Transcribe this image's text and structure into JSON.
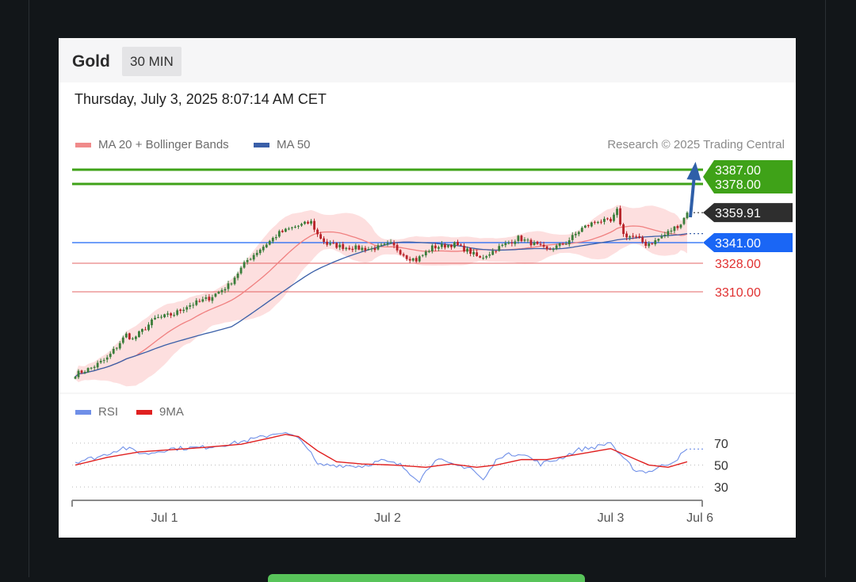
{
  "header": {
    "title": "Gold",
    "timeframe": "30 MIN",
    "datetime": "Thursday, July 3, 2025 8:07:14 AM CET",
    "credit": "Research © 2025 Trading Central"
  },
  "legend": {
    "ma20_bb": "MA 20 + Bollinger Bands",
    "ma50": "MA 50",
    "rsi": "RSI",
    "rsi_ma": "9MA"
  },
  "colors": {
    "up": "#3a7d3a",
    "down": "#b8242a",
    "bb_fill": "#fdd9d9",
    "ma20": "#f08080",
    "ma50": "#3a5fa8",
    "resistance": "#3fa218",
    "pivot": "#1a66f5",
    "support": "#e05050",
    "last": "#2e2e2e",
    "rsi": "#6f8fe8",
    "rsi_ma": "#e02020"
  },
  "chart_data": {
    "type": "candlestick",
    "instrument": "Gold",
    "interval": "30 MIN",
    "ylim": [
      3252,
      3392
    ],
    "x_ticks": [
      "Jul 1",
      "Jul 2",
      "Jul 3",
      "Jul 6"
    ],
    "x_tick_index": [
      28,
      98,
      168,
      196
    ],
    "levels": [
      {
        "value": 3387.0,
        "label": "3387.00",
        "kind": "resistance"
      },
      {
        "value": 3378.0,
        "label": "3378.00",
        "kind": "resistance"
      },
      {
        "value": 3359.91,
        "label": "3359.91",
        "kind": "last"
      },
      {
        "value": 3341.0,
        "label": "3341.00",
        "kind": "pivot"
      },
      {
        "value": 3328.0,
        "label": "3328.00",
        "kind": "support"
      },
      {
        "value": 3310.0,
        "label": "3310.00",
        "kind": "support"
      }
    ],
    "target_arrow": {
      "from": 3357,
      "to": 3389
    },
    "close_anchors": [
      [
        0,
        3258
      ],
      [
        5,
        3262
      ],
      [
        10,
        3268
      ],
      [
        16,
        3283
      ],
      [
        18,
        3280
      ],
      [
        25,
        3293
      ],
      [
        31,
        3296
      ],
      [
        35,
        3301
      ],
      [
        42,
        3306
      ],
      [
        48,
        3314
      ],
      [
        54,
        3330
      ],
      [
        58,
        3337
      ],
      [
        64,
        3347
      ],
      [
        69,
        3351
      ],
      [
        74,
        3354
      ],
      [
        76,
        3346
      ],
      [
        79,
        3340
      ],
      [
        85,
        3338
      ],
      [
        93,
        3337
      ],
      [
        99,
        3340
      ],
      [
        104,
        3332
      ],
      [
        107,
        3330
      ],
      [
        112,
        3338
      ],
      [
        119,
        3340
      ],
      [
        124,
        3335
      ],
      [
        127,
        3331
      ],
      [
        133,
        3338
      ],
      [
        139,
        3344
      ],
      [
        144,
        3340
      ],
      [
        148,
        3336
      ],
      [
        154,
        3341
      ],
      [
        159,
        3350
      ],
      [
        164,
        3355
      ],
      [
        168,
        3354
      ],
      [
        170,
        3361
      ],
      [
        172,
        3346
      ],
      [
        176,
        3344
      ],
      [
        179,
        3340
      ],
      [
        182,
        3342
      ],
      [
        185,
        3346
      ],
      [
        187,
        3349
      ],
      [
        190,
        3353
      ],
      [
        192,
        3359.91
      ]
    ],
    "rsi": {
      "levels": [
        70,
        50,
        30
      ],
      "ylim": [
        20,
        88
      ],
      "anchors": [
        [
          0,
          53
        ],
        [
          8,
          58
        ],
        [
          15,
          66
        ],
        [
          22,
          60
        ],
        [
          30,
          65
        ],
        [
          40,
          66
        ],
        [
          50,
          70
        ],
        [
          58,
          75
        ],
        [
          64,
          80
        ],
        [
          68,
          77
        ],
        [
          72,
          70
        ],
        [
          76,
          50
        ],
        [
          82,
          50
        ],
        [
          90,
          49
        ],
        [
          96,
          54
        ],
        [
          102,
          50
        ],
        [
          108,
          36
        ],
        [
          113,
          56
        ],
        [
          118,
          50
        ],
        [
          124,
          48
        ],
        [
          128,
          36
        ],
        [
          133,
          58
        ],
        [
          140,
          61
        ],
        [
          146,
          51
        ],
        [
          152,
          56
        ],
        [
          158,
          64
        ],
        [
          164,
          67
        ],
        [
          168,
          71
        ],
        [
          171,
          58
        ],
        [
          176,
          45
        ],
        [
          180,
          44
        ],
        [
          184,
          49
        ],
        [
          188,
          54
        ],
        [
          192,
          64
        ]
      ],
      "ma_anchors": [
        [
          0,
          50
        ],
        [
          10,
          57
        ],
        [
          20,
          62
        ],
        [
          30,
          64
        ],
        [
          40,
          66
        ],
        [
          52,
          69
        ],
        [
          60,
          74
        ],
        [
          66,
          78
        ],
        [
          70,
          76
        ],
        [
          76,
          63
        ],
        [
          82,
          53
        ],
        [
          90,
          51
        ],
        [
          100,
          50
        ],
        [
          110,
          48
        ],
        [
          118,
          51
        ],
        [
          126,
          48
        ],
        [
          132,
          50
        ],
        [
          140,
          55
        ],
        [
          148,
          55
        ],
        [
          156,
          59
        ],
        [
          164,
          63
        ],
        [
          168,
          65
        ],
        [
          172,
          60
        ],
        [
          180,
          50
        ],
        [
          186,
          48
        ],
        [
          192,
          53
        ]
      ]
    }
  }
}
